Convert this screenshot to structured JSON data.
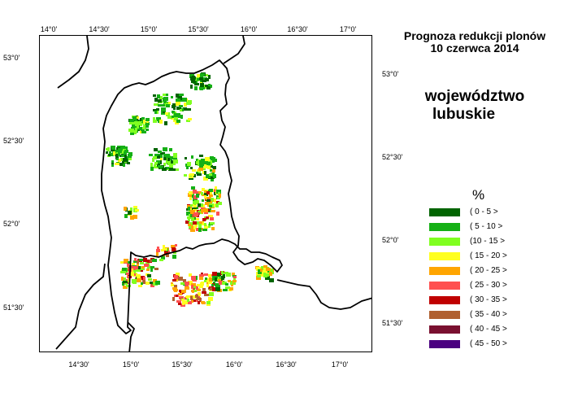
{
  "title_line1": "Prognoza redukcji plonów",
  "title_line2": "10 czerwca 2014",
  "region_line1": "województwo",
  "region_line2": "lubuskie",
  "legend_unit": "%",
  "legend": [
    {
      "label": "( 0 - 5 >",
      "color": "#006400"
    },
    {
      "label": "( 5 - 10 >",
      "color": "#15b015"
    },
    {
      "label": "(10 - 15 >",
      "color": "#80ff20"
    },
    {
      "label": "( 15 - 20 >",
      "color": "#ffff20"
    },
    {
      "label": "( 20 - 25 >",
      "color": "#ffa500"
    },
    {
      "label": "( 25 - 30 >",
      "color": "#ff5050"
    },
    {
      "label": "( 30 - 35 >",
      "color": "#c00000"
    },
    {
      "label": "( 35 - 40 >",
      "color": "#b06030"
    },
    {
      "label": "( 40 - 45 >",
      "color": "#7a1030"
    },
    {
      "label": "( 45 - 50 >",
      "color": "#4a0080"
    }
  ],
  "graticule": {
    "top_labels": [
      "14°0'",
      "14°30'",
      "15°0'",
      "15°30'",
      "16°0'",
      "16°30'",
      "17°0'"
    ],
    "bottom_labels": [
      "14°30'",
      "15°0'",
      "15°30'",
      "16°0'",
      "16°30'",
      "17°0'"
    ],
    "left_labels": [
      "53°0'",
      "52°30'",
      "52°0'",
      "51°30'"
    ],
    "right_labels": [
      "53°0'",
      "52°30'",
      "52°0'",
      "51°30'"
    ]
  }
}
